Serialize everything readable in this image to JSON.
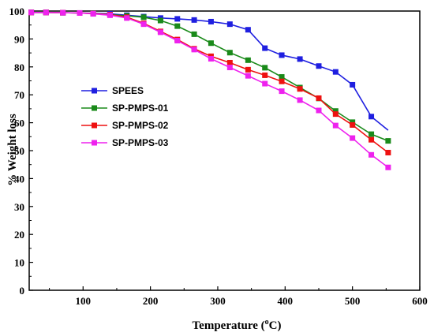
{
  "chart_data": {
    "type": "line",
    "xlabel": "Temperature (",
    "xlabel_unit_sup": "o",
    "xlabel_unit": "C)",
    "ylabel": "% Weight loss",
    "xlim": [
      20,
      600
    ],
    "ylim": [
      0,
      100
    ],
    "xticks": [
      100,
      200,
      300,
      400,
      500,
      600
    ],
    "yticks": [
      0,
      10,
      20,
      30,
      40,
      50,
      60,
      70,
      80,
      90,
      100
    ],
    "grid": false,
    "legend_position": "center-left",
    "x": [
      23,
      45,
      70,
      95,
      115,
      140,
      165,
      190,
      215,
      240,
      265,
      290,
      318,
      345,
      370,
      395,
      422,
      450,
      475,
      500,
      528,
      553
    ],
    "series": [
      {
        "name": "SPEES",
        "color": "#1f1fe0",
        "marker": "square",
        "values": [
          99.5,
          99.5,
          99.4,
          99.3,
          99.2,
          99,
          98.5,
          98,
          97.5,
          97.2,
          96.8,
          96.2,
          95.3,
          93.3,
          86.7,
          84.2,
          82.8,
          80.3,
          78.2,
          73.6,
          62.2,
          57.3
        ],
        "x_markers_only_until": 528
      },
      {
        "name": "SP-PMPS-01",
        "color": "#1a8a1a",
        "marker": "square",
        "values": [
          99.5,
          99.5,
          99.4,
          99.3,
          99.1,
          98.7,
          98.3,
          97.8,
          96.6,
          94.6,
          91.7,
          88.5,
          85.1,
          82.4,
          79.7,
          76.4,
          72.6,
          68.7,
          64.2,
          60.2,
          55.9,
          53.5
        ]
      },
      {
        "name": "SP-PMPS-02",
        "color": "#ee1111",
        "marker": "square",
        "values": [
          99.5,
          99.5,
          99.4,
          99.3,
          99.1,
          98.7,
          97.8,
          95.6,
          92.7,
          89.8,
          86.5,
          83.8,
          81.5,
          79,
          77,
          74.8,
          72.1,
          68.8,
          63.1,
          59.2,
          53.9,
          49.3
        ]
      },
      {
        "name": "SP-PMPS-03",
        "color": "#ee22ee",
        "marker": "square",
        "values": [
          99.5,
          99.5,
          99.4,
          99.3,
          99,
          98.5,
          97.5,
          95.3,
          92.4,
          89.4,
          86.2,
          82.9,
          79.8,
          76.8,
          74,
          71.3,
          68.1,
          64.4,
          59,
          54.5,
          48.5,
          44
        ]
      }
    ]
  }
}
